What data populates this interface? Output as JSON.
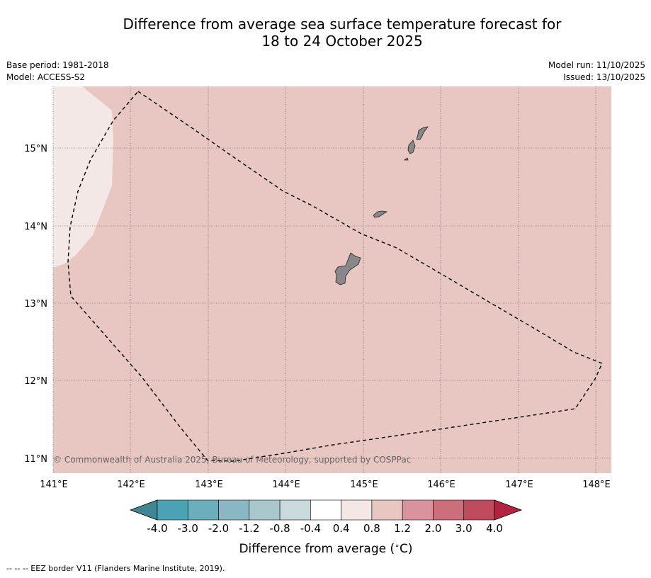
{
  "title_line1": "Difference from average sea surface temperature forecast for",
  "title_line2": "18 to 24 October 2025",
  "meta": {
    "base_period": "Base period: 1981-2018",
    "model": "Model: ACCESS-S2",
    "model_run": "Model run: 11/10/2025",
    "issued": "Issued: 13/10/2025"
  },
  "map": {
    "lon_labels": [
      "141°E",
      "142°E",
      "143°E",
      "144°E",
      "145°E",
      "146°E",
      "147°E",
      "148°E"
    ],
    "lat_labels": [
      "15°N",
      "14°N",
      "13°N",
      "12°N",
      "11°N"
    ],
    "copyright": "© Commonwealth of Australia 2025, Bureau of Meteorology, supported by COSPPac",
    "background_anomaly_class": "0.8 to 1.2",
    "west_patch_anomaly_class": "0.4 to 0.8",
    "colors": {
      "background": "#e8c7c2",
      "west_patch": "#f4e8e7",
      "land": "#888888"
    }
  },
  "colorbar": {
    "title": "Difference from average ($^\\circ$C)",
    "title_display": "Difference from average (",
    "title_unit": "C)",
    "tick_labels": [
      "-4.0",
      "-3.0",
      "-2.0",
      "-1.2",
      "-0.8",
      "-0.4",
      "0.4",
      "0.8",
      "1.2",
      "2.0",
      "3.0",
      "4.0"
    ],
    "colors": [
      "#4aa3b2",
      "#6daebd",
      "#8ab7c3",
      "#a8c8cc",
      "#c9dadd",
      "#ffffff",
      "#f4e8e7",
      "#e8c7c2",
      "#d9939c",
      "#cc6f7a",
      "#c04b5c"
    ],
    "low_extend_color": "#3f8793",
    "high_extend_color": "#b42240"
  },
  "footer": "--  --  -- EEZ border V11 (Flanders Marine Institute, 2019)."
}
